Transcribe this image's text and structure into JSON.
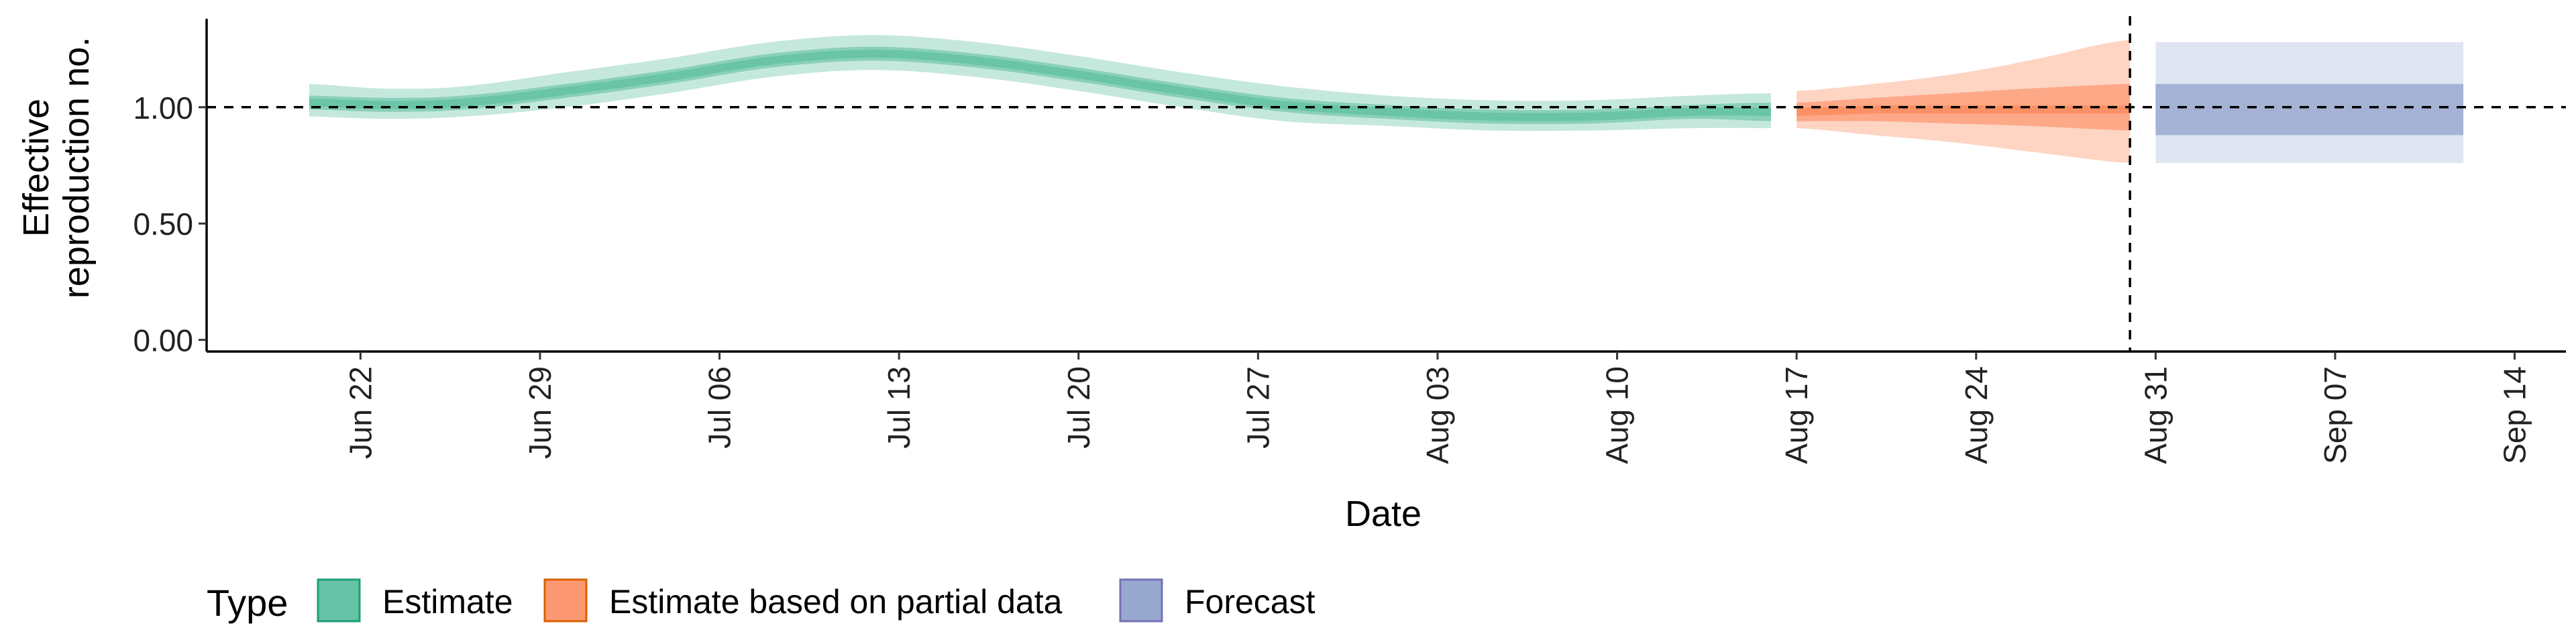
{
  "chart_data": {
    "type": "area",
    "xlabel": "Date",
    "ylabel_lines": [
      "Effective",
      "reproduction no."
    ],
    "x_tick_labels": [
      "Jun 22",
      "Jun 29",
      "Jul 06",
      "Jul 13",
      "Jul 20",
      "Jul 27",
      "Aug 03",
      "Aug 10",
      "Aug 17",
      "Aug 24",
      "Aug 31",
      "Sep 07",
      "Sep 14"
    ],
    "x_tick_dates": [
      "2020-06-22",
      "2020-06-29",
      "2020-07-06",
      "2020-07-13",
      "2020-07-20",
      "2020-07-27",
      "2020-08-03",
      "2020-08-10",
      "2020-08-17",
      "2020-08-24",
      "2020-08-31",
      "2020-09-07",
      "2020-09-14"
    ],
    "x_range": [
      "2020-06-16",
      "2020-09-16"
    ],
    "y_tick_labels": [
      "0.00",
      "0.50",
      "1.00"
    ],
    "y_tick_values": [
      0,
      0.5,
      1.0
    ],
    "ylim": [
      -0.05,
      1.38
    ],
    "reference_hline": 1.0,
    "reference_vline": "2020-08-30",
    "grid": false,
    "legend": {
      "title": "Type",
      "position": "bottom",
      "items": [
        {
          "label": "Estimate",
          "fill": "#66C2A5",
          "stroke": "#1B9E77"
        },
        {
          "label": "Estimate based on partial data",
          "fill": "#FC8D62",
          "stroke": "#D95F02"
        },
        {
          "label": "Forecast",
          "fill": "#8DA0CB",
          "stroke": "#7570B3"
        }
      ]
    },
    "series": [
      {
        "name": "Estimate",
        "color": "#66C2A5",
        "points": [
          {
            "date": "2020-06-20",
            "median": 1.02,
            "lower_50": 0.99,
            "upper_50": 1.05,
            "lower_90": 0.96,
            "upper_90": 1.1
          },
          {
            "date": "2020-06-23",
            "median": 1.01,
            "lower_50": 0.98,
            "upper_50": 1.04,
            "lower_90": 0.95,
            "upper_90": 1.08
          },
          {
            "date": "2020-06-26",
            "median": 1.02,
            "lower_50": 0.99,
            "upper_50": 1.05,
            "lower_90": 0.96,
            "upper_90": 1.09
          },
          {
            "date": "2020-06-30",
            "median": 1.07,
            "lower_50": 1.04,
            "upper_50": 1.1,
            "lower_90": 1.0,
            "upper_90": 1.15
          },
          {
            "date": "2020-07-04",
            "median": 1.13,
            "lower_50": 1.1,
            "upper_50": 1.16,
            "lower_90": 1.06,
            "upper_90": 1.21
          },
          {
            "date": "2020-07-08",
            "median": 1.2,
            "lower_50": 1.17,
            "upper_50": 1.23,
            "lower_90": 1.13,
            "upper_90": 1.28
          },
          {
            "date": "2020-07-12",
            "median": 1.23,
            "lower_50": 1.2,
            "upper_50": 1.26,
            "lower_90": 1.16,
            "upper_90": 1.31
          },
          {
            "date": "2020-07-16",
            "median": 1.2,
            "lower_50": 1.17,
            "upper_50": 1.23,
            "lower_90": 1.13,
            "upper_90": 1.28
          },
          {
            "date": "2020-07-20",
            "median": 1.14,
            "lower_50": 1.11,
            "upper_50": 1.17,
            "lower_90": 1.07,
            "upper_90": 1.22
          },
          {
            "date": "2020-07-24",
            "median": 1.07,
            "lower_50": 1.04,
            "upper_50": 1.1,
            "lower_90": 1.0,
            "upper_90": 1.15
          },
          {
            "date": "2020-07-28",
            "median": 1.01,
            "lower_50": 0.98,
            "upper_50": 1.04,
            "lower_90": 0.94,
            "upper_90": 1.09
          },
          {
            "date": "2020-08-01",
            "median": 0.98,
            "lower_50": 0.95,
            "upper_50": 1.01,
            "lower_90": 0.92,
            "upper_90": 1.05
          },
          {
            "date": "2020-08-05",
            "median": 0.96,
            "lower_50": 0.93,
            "upper_50": 0.99,
            "lower_90": 0.9,
            "upper_90": 1.03
          },
          {
            "date": "2020-08-09",
            "median": 0.96,
            "lower_50": 0.93,
            "upper_50": 0.99,
            "lower_90": 0.9,
            "upper_90": 1.03
          },
          {
            "date": "2020-08-13",
            "median": 0.98,
            "lower_50": 0.95,
            "upper_50": 1.01,
            "lower_90": 0.91,
            "upper_90": 1.05
          },
          {
            "date": "2020-08-16",
            "median": 0.98,
            "lower_50": 0.94,
            "upper_50": 1.02,
            "lower_90": 0.91,
            "upper_90": 1.06
          }
        ]
      },
      {
        "name": "Estimate based on partial data",
        "color": "#FC8D62",
        "points": [
          {
            "date": "2020-08-17",
            "median": 0.98,
            "lower_50": 0.94,
            "upper_50": 1.02,
            "lower_90": 0.91,
            "upper_90": 1.07
          },
          {
            "date": "2020-08-20",
            "median": 0.99,
            "lower_50": 0.94,
            "upper_50": 1.04,
            "lower_90": 0.88,
            "upper_90": 1.1
          },
          {
            "date": "2020-08-23",
            "median": 0.99,
            "lower_50": 0.93,
            "upper_50": 1.06,
            "lower_90": 0.85,
            "upper_90": 1.14
          },
          {
            "date": "2020-08-26",
            "median": 0.99,
            "lower_50": 0.92,
            "upper_50": 1.08,
            "lower_90": 0.81,
            "upper_90": 1.2
          },
          {
            "date": "2020-08-30",
            "median": 0.99,
            "lower_50": 0.9,
            "upper_50": 1.1,
            "lower_90": 0.76,
            "upper_90": 1.29
          }
        ]
      },
      {
        "name": "Forecast",
        "color": "#8DA0CB",
        "points": [
          {
            "date": "2020-08-31",
            "median": 0.99,
            "lower_50": 0.88,
            "upper_50": 1.1,
            "lower_90": 0.76,
            "upper_90": 1.28
          },
          {
            "date": "2020-09-12",
            "median": 0.99,
            "lower_50": 0.88,
            "upper_50": 1.1,
            "lower_90": 0.76,
            "upper_90": 1.28
          }
        ]
      }
    ]
  }
}
